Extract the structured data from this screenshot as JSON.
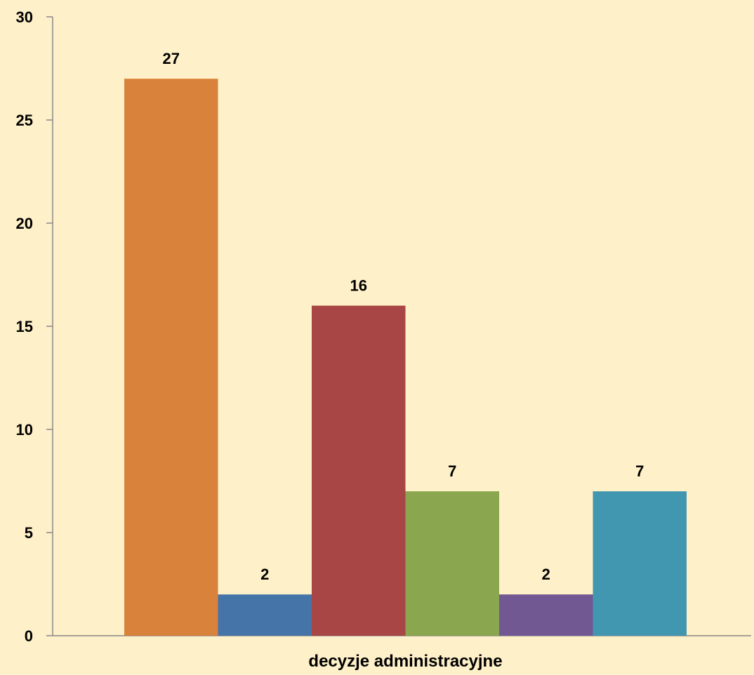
{
  "chart_data": {
    "type": "bar",
    "categories": [
      "decyzje administracyjne"
    ],
    "series": [
      {
        "values": [
          27
        ],
        "color": "#d9823b"
      },
      {
        "values": [
          2
        ],
        "color": "#4574a8"
      },
      {
        "values": [
          16
        ],
        "color": "#a84545"
      },
      {
        "values": [
          7
        ],
        "color": "#8aa64e"
      },
      {
        "values": [
          2
        ],
        "color": "#725893"
      },
      {
        "values": [
          7
        ],
        "color": "#4297b0"
      }
    ],
    "title": "",
    "xlabel": "",
    "ylabel": "",
    "ylim": [
      0,
      30
    ],
    "yticks": [
      0,
      5,
      10,
      15,
      20,
      25,
      30
    ],
    "grid": false,
    "legend": "none",
    "background": "#fef0c8"
  }
}
